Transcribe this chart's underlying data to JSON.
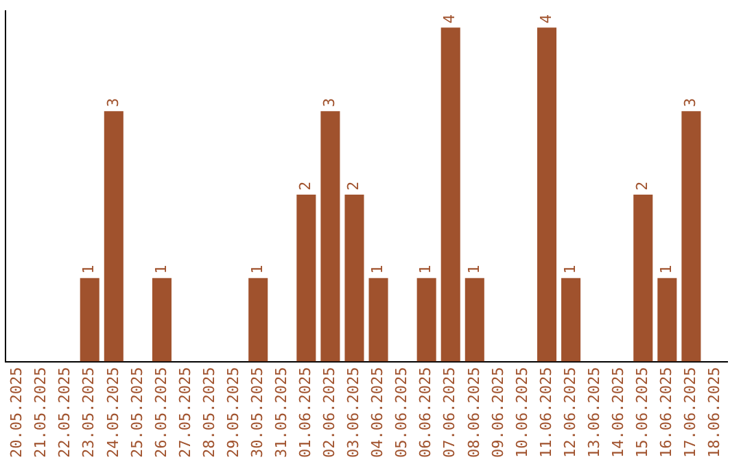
{
  "chart_data": {
    "type": "bar",
    "categories": [
      "20.05.2025",
      "21.05.2025",
      "22.05.2025",
      "23.05.2025",
      "24.05.2025",
      "25.05.2025",
      "26.05.2025",
      "27.05.2025",
      "28.05.2025",
      "29.05.2025",
      "30.05.2025",
      "31.05.2025",
      "01.06.2025",
      "02.06.2025",
      "03.06.2025",
      "04.06.2025",
      "05.06.2025",
      "06.06.2025",
      "07.06.2025",
      "08.06.2025",
      "09.06.2025",
      "10.06.2025",
      "11.06.2025",
      "12.06.2025",
      "13.06.2025",
      "14.06.2025",
      "15.06.2025",
      "16.06.2025",
      "17.06.2025",
      "18.06.2025"
    ],
    "values": [
      0,
      0,
      0,
      1,
      3,
      0,
      1,
      0,
      0,
      0,
      1,
      0,
      2,
      3,
      2,
      1,
      0,
      1,
      4,
      1,
      0,
      0,
      4,
      1,
      0,
      0,
      2,
      1,
      3,
      0
    ],
    "value_labels": [
      null,
      null,
      null,
      "1",
      "3",
      null,
      "1",
      null,
      null,
      null,
      "1",
      null,
      "2",
      "3",
      "2",
      "1",
      null,
      "1",
      "4",
      "1",
      null,
      null,
      "4",
      "1",
      null,
      null,
      "2",
      "1",
      "3",
      null
    ],
    "color": "#a0522d",
    "ylim": [
      0,
      4.2
    ],
    "tick_labels": "x",
    "grid": false,
    "legend": false
  }
}
